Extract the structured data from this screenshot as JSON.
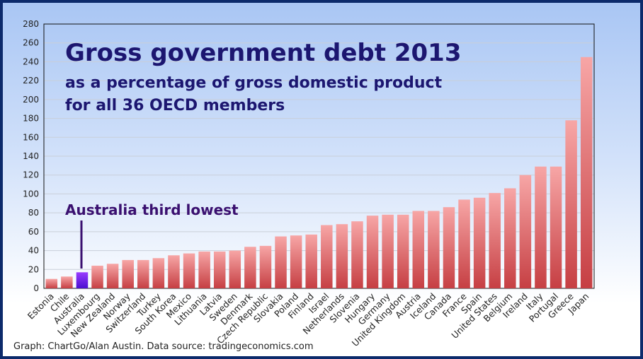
{
  "chart_data": {
    "type": "bar",
    "title": "Gross government debt 2013",
    "subtitle_line1": "as a percentage of gross domestic product",
    "subtitle_line2": "for all 36 OECD members",
    "annotation": "Australia third lowest",
    "source": "Graph: ChartGo/Alan Austin. Data source: tradingeconomics.com",
    "ylim": [
      0,
      280
    ],
    "yticks": [
      0,
      20,
      40,
      60,
      80,
      100,
      120,
      140,
      160,
      180,
      200,
      220,
      240,
      260,
      280
    ],
    "grid": true,
    "highlight": "Australia",
    "colors": {
      "bar_top": "#f7a6a6",
      "bar_bottom": "#c63f43",
      "highlight_top": "#9a3cff",
      "highlight_bottom": "#4a10d0",
      "title": "#1c1670",
      "annotation": "#3a1070",
      "frame": "#0c2a6b"
    },
    "categories": [
      "Estonia",
      "Chile",
      "Australia",
      "Luxembourg",
      "New Zealand",
      "Norway",
      "Switzerland",
      "Turkey",
      "South Korea",
      "Mexico",
      "Lithuania",
      "Latvia",
      "Sweden",
      "Denmark",
      "Czech Republic",
      "Slovakia",
      "Poland",
      "Finland",
      "Israel",
      "Netherlands",
      "Slovenia",
      "Hungary",
      "Germany",
      "United Kingdom",
      "Austria",
      "Iceland",
      "Canada",
      "France",
      "Spain",
      "United States",
      "Belgium",
      "Ireland",
      "Italy",
      "Portugal",
      "Greece",
      "Japan"
    ],
    "values": [
      10,
      12.5,
      17,
      24,
      26,
      30,
      30,
      32,
      35,
      37,
      39,
      39,
      40,
      44,
      45,
      55,
      56,
      57,
      67,
      68,
      71,
      77,
      78,
      78,
      82,
      82,
      86,
      94,
      96,
      101,
      106,
      120,
      129,
      129,
      178,
      245
    ]
  }
}
